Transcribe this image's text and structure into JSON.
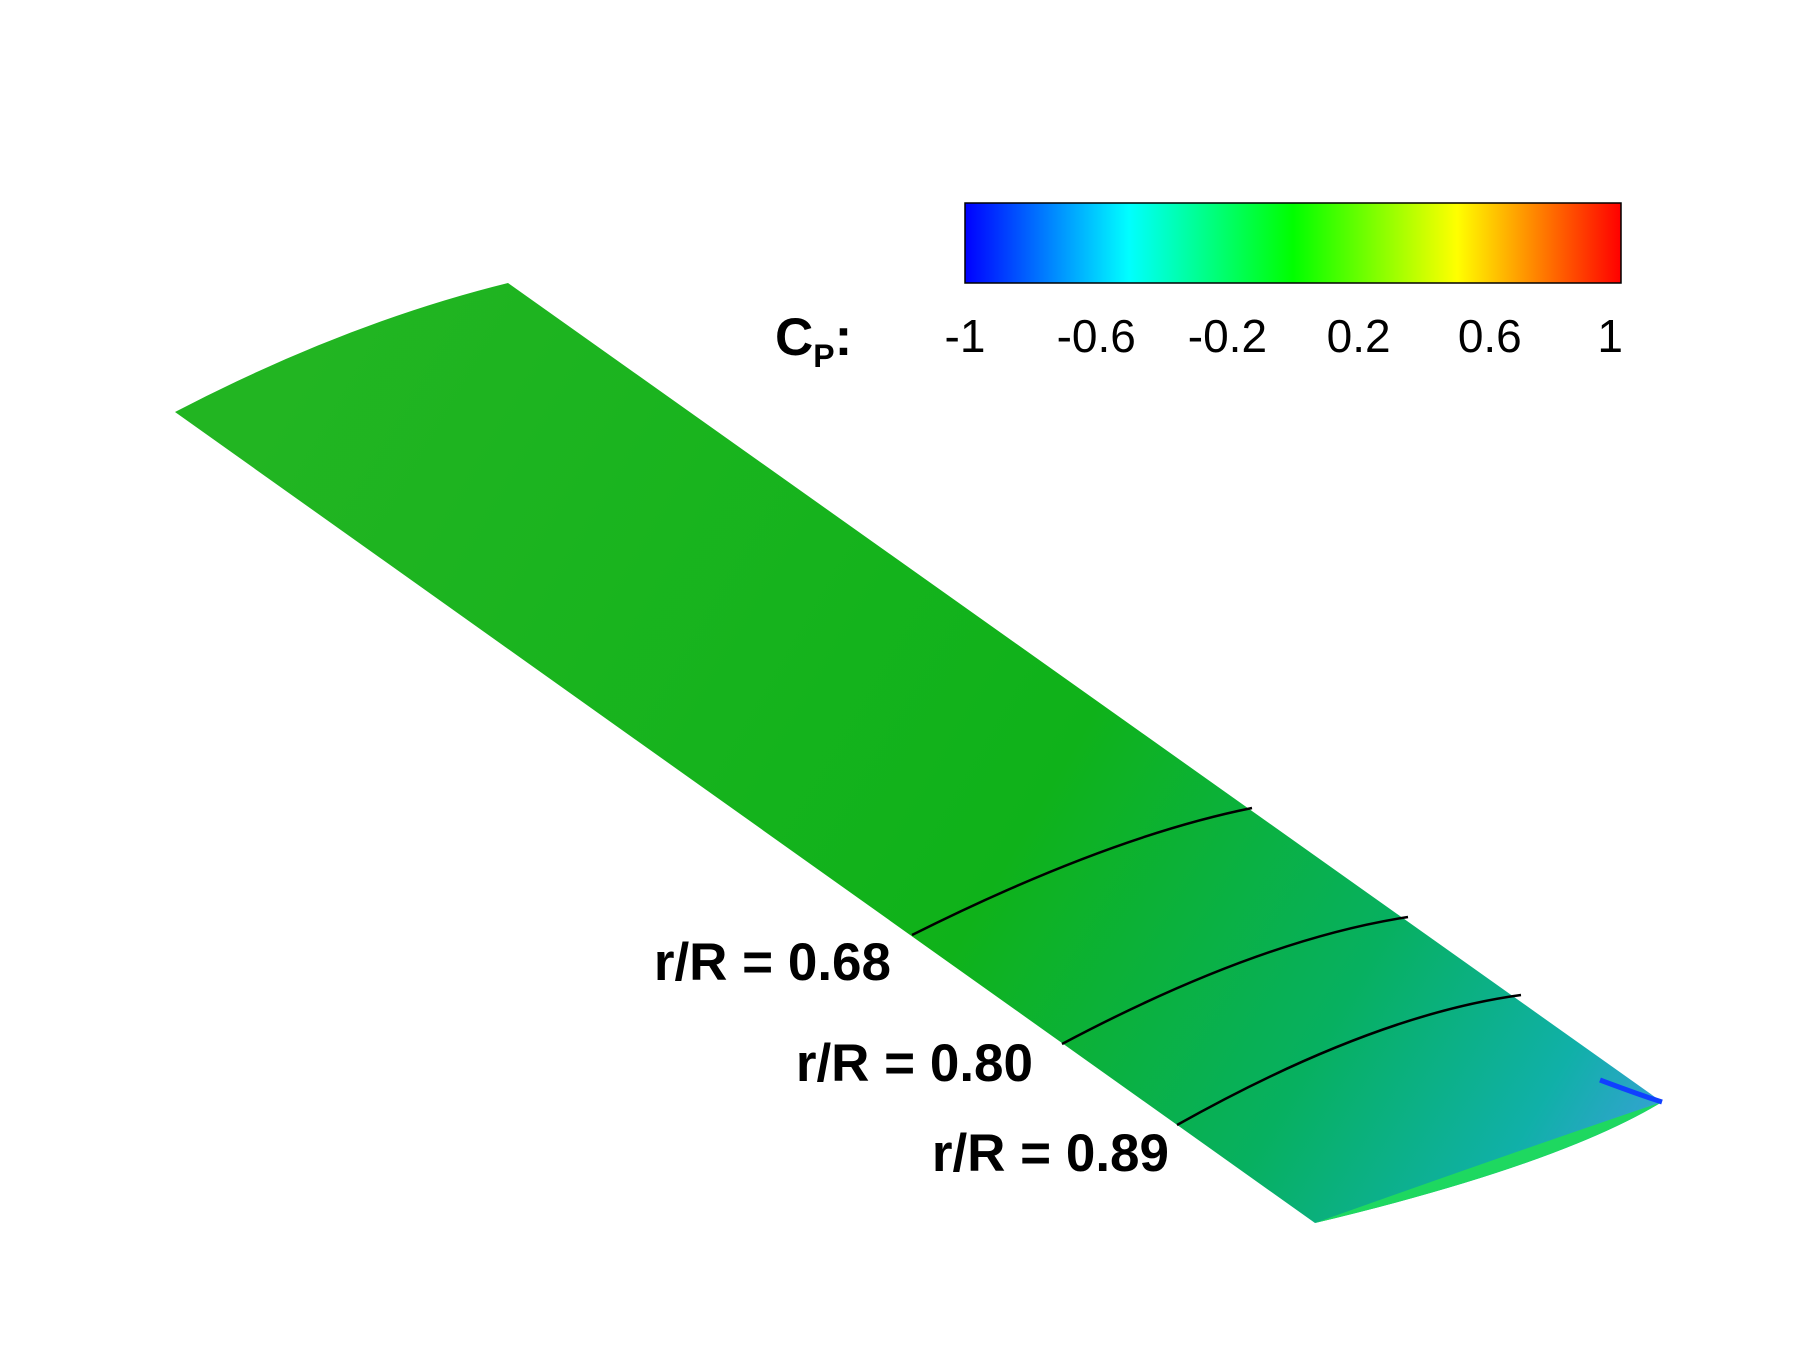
{
  "colorbar": {
    "title": {
      "main": "C",
      "subscript": "P",
      "suffix": ":"
    },
    "min": -1,
    "max": 1,
    "ticks": [
      -1,
      -0.6,
      -0.2,
      0.2,
      0.6,
      1
    ]
  },
  "sections": [
    {
      "label": "r/R = 0.68"
    },
    {
      "label": "r/R = 0.80"
    },
    {
      "label": "r/R = 0.89"
    }
  ]
}
